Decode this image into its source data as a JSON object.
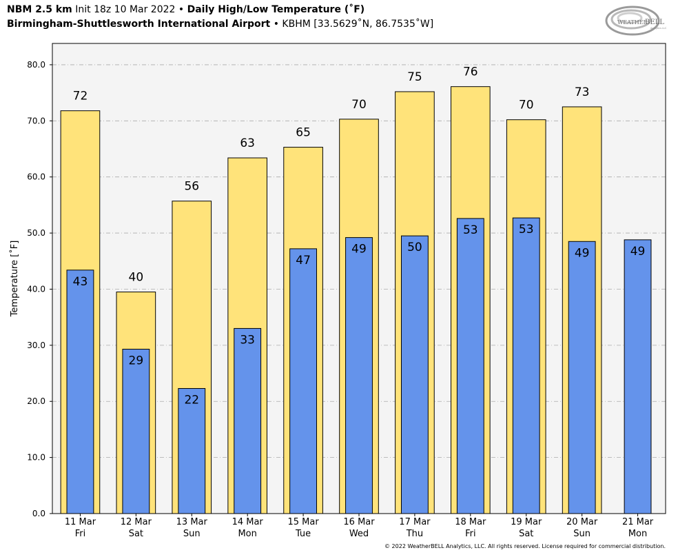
{
  "header": {
    "model": "NBM 2.5 km",
    "init": "Init 18z 10 Mar 2022",
    "separator": "•",
    "product": "Daily High/Low Temperature (˚F)",
    "location": "Birmingham-Shuttlesworth International Airport",
    "station": "KBHM [33.5629˚N, 86.7535˚W]"
  },
  "logo": {
    "text_a": "WEATHER",
    "text_b": "BELL",
    "text_c": "Analytics LLC"
  },
  "footer": "© 2022 WeatherBELL Analytics, LLC. All rights reserved. License required for commercial distribution.",
  "colors": {
    "high": "#FFE37A",
    "low": "#6493EB",
    "plot_bg": "#F4F4F4",
    "grid": "#AAAAAA"
  },
  "chart_data": {
    "type": "bar",
    "title": "Daily High/Low Temperature (˚F)",
    "ylabel": "Temperature [˚F]",
    "xlabel": "",
    "ylim": [
      0,
      83.8
    ],
    "yticks": [
      0,
      10,
      20,
      30,
      40,
      50,
      60,
      70,
      80
    ],
    "ytick_labels": [
      "0.0",
      "10.0",
      "20.0",
      "30.0",
      "40.0",
      "50.0",
      "60.0",
      "70.0",
      "80.0"
    ],
    "grid": true,
    "categories": [
      {
        "date": "11 Mar",
        "day": "Fri"
      },
      {
        "date": "12 Mar",
        "day": "Sat"
      },
      {
        "date": "13 Mar",
        "day": "Sun"
      },
      {
        "date": "14 Mar",
        "day": "Mon"
      },
      {
        "date": "15 Mar",
        "day": "Tue"
      },
      {
        "date": "16 Mar",
        "day": "Wed"
      },
      {
        "date": "17 Mar",
        "day": "Thu"
      },
      {
        "date": "18 Mar",
        "day": "Fri"
      },
      {
        "date": "19 Mar",
        "day": "Sat"
      },
      {
        "date": "20 Mar",
        "day": "Sun"
      },
      {
        "date": "21 Mar",
        "day": "Mon"
      }
    ],
    "series": [
      {
        "key": "high",
        "values": [
          71.8,
          39.5,
          55.7,
          63.4,
          65.3,
          70.3,
          75.2,
          76.1,
          70.2,
          72.5,
          null
        ],
        "labels": [
          "72",
          "40",
          "56",
          "63",
          "65",
          "70",
          "75",
          "76",
          "70",
          "73",
          null
        ]
      },
      {
        "key": "low",
        "values": [
          43.4,
          29.3,
          22.3,
          33.0,
          47.2,
          49.2,
          49.5,
          52.6,
          52.7,
          48.5,
          48.8
        ],
        "labels": [
          "43",
          "29",
          "22",
          "33",
          "47",
          "49",
          "50",
          "53",
          "53",
          "49",
          "49"
        ]
      }
    ]
  }
}
